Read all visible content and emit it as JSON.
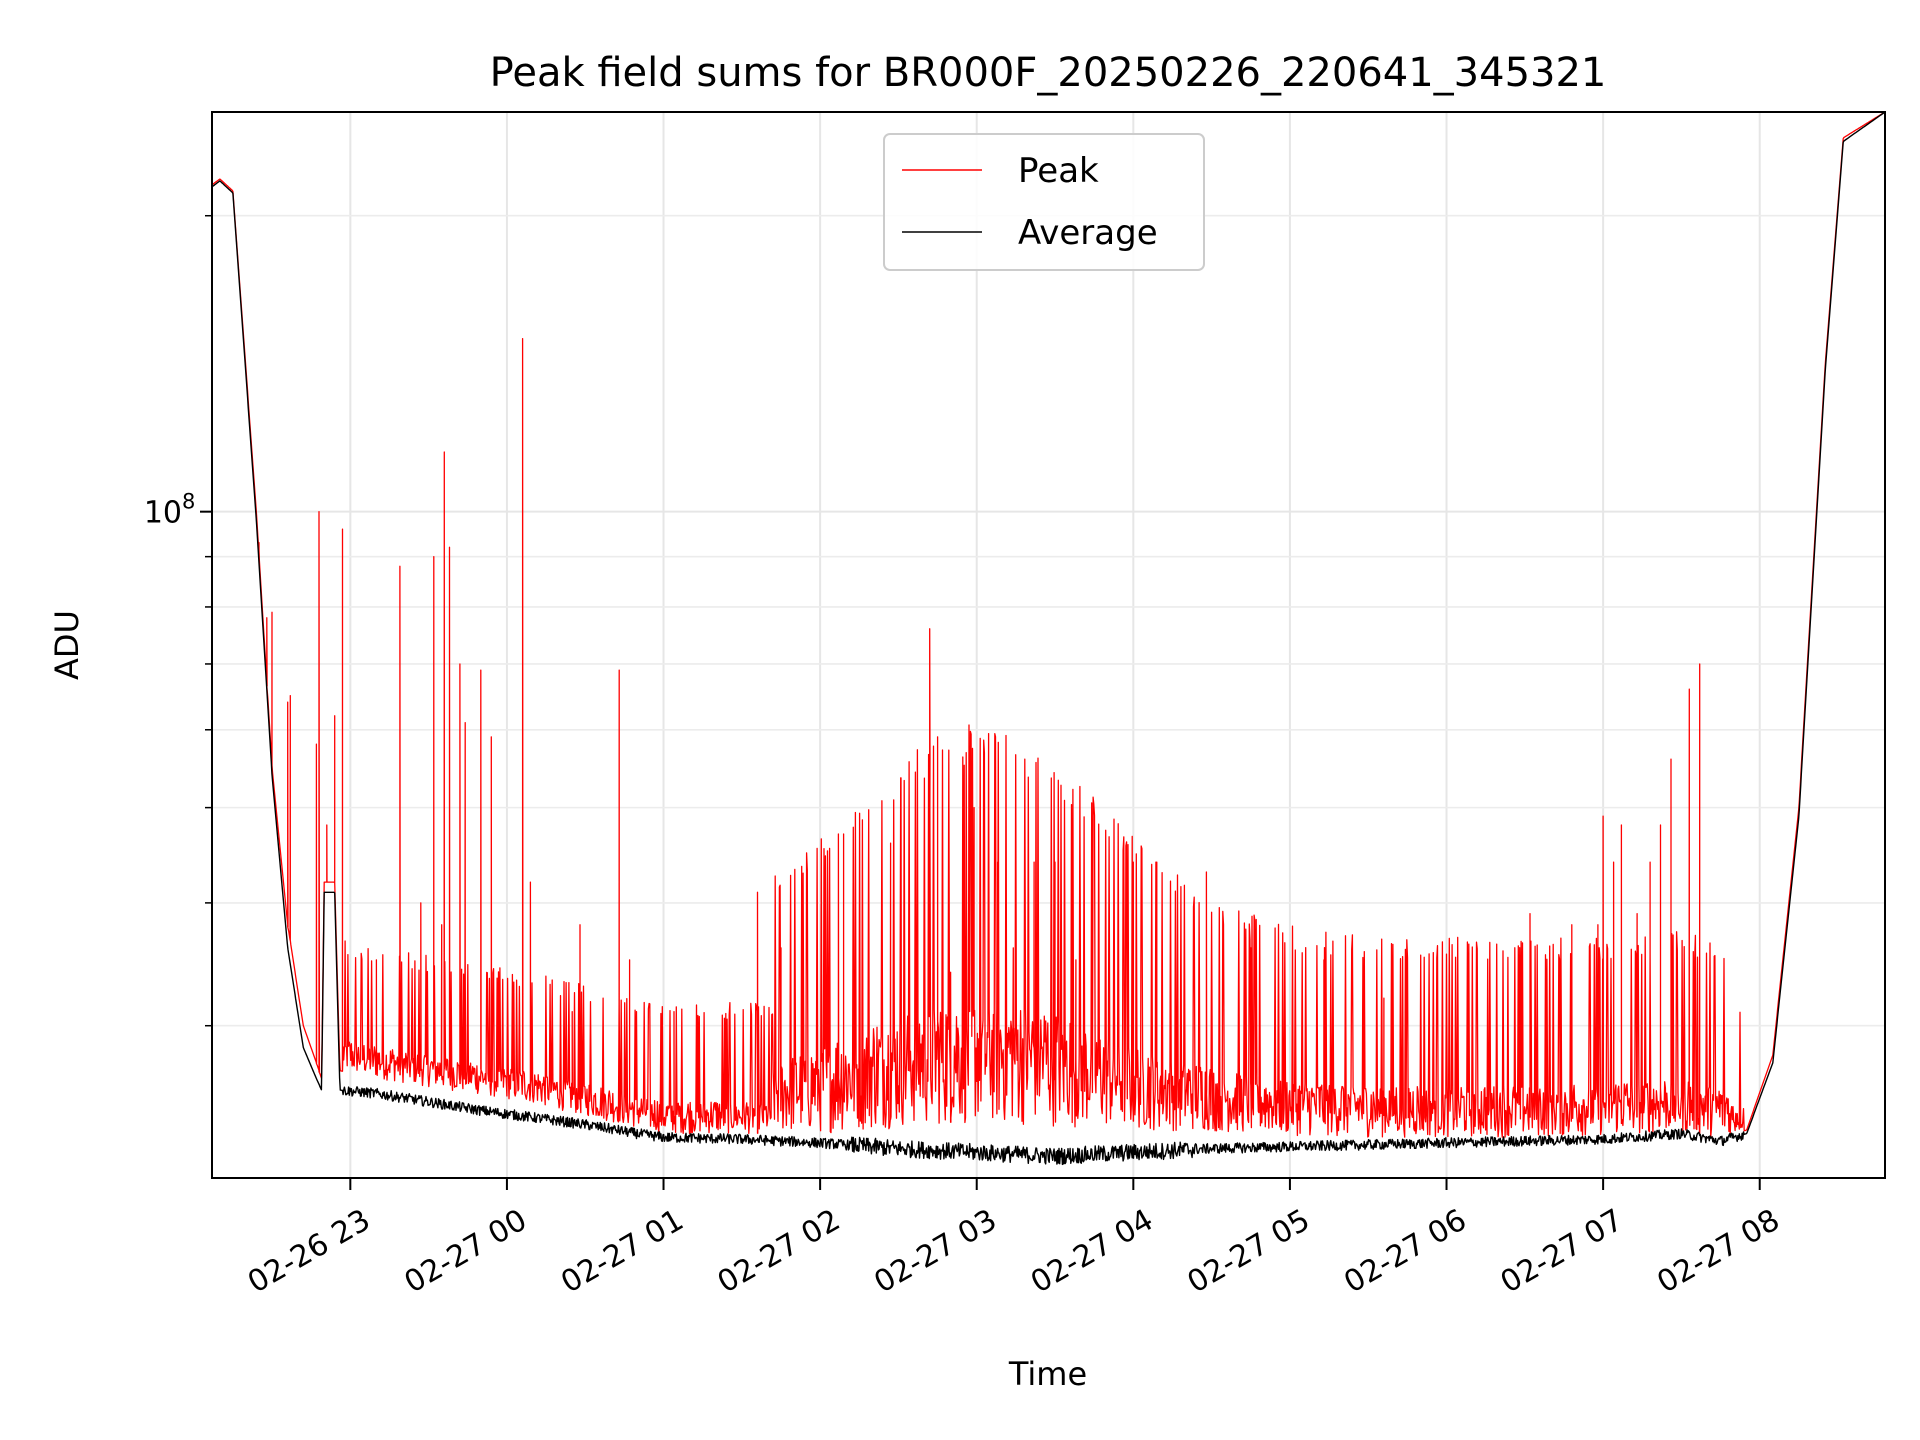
{
  "chart_data": {
    "type": "line",
    "title": "Peak field sums for BR000F_20250226_220641_345321",
    "xlabel": "Time",
    "ylabel": "ADU",
    "yscale": "log",
    "ylim": [
      21000000,
      255000000
    ],
    "xlim": [
      "2025-02-26 22:07",
      "2025-02-27 08:48"
    ],
    "x_tick_labels": [
      "02-26 23",
      "02-27 00",
      "02-27 01",
      "02-27 02",
      "02-27 03",
      "02-27 04",
      "02-27 05",
      "02-27 06",
      "02-27 07",
      "02-27 08"
    ],
    "x_tick_times": [
      "2025-02-26 23:00",
      "2025-02-27 00:00",
      "2025-02-27 01:00",
      "2025-02-27 02:00",
      "2025-02-27 03:00",
      "2025-02-27 04:00",
      "2025-02-27 05:00",
      "2025-02-27 06:00",
      "2025-02-27 07:00",
      "2025-02-27 08:00"
    ],
    "y_tick_label_base": "10",
    "y_tick_label_exp": "8",
    "y_tick_value": 100000000,
    "y_minor_ticks": [
      30000000,
      40000000,
      50000000,
      60000000,
      70000000,
      80000000,
      90000000,
      200000000
    ],
    "grid": true,
    "legend_position": "top-center",
    "series": [
      {
        "name": "Peak",
        "color": "#ff0000",
        "baseline_points": [
          [
            "2025-02-26 22:07",
            215000000
          ],
          [
            "2025-02-26 22:10",
            218000000
          ],
          [
            "2025-02-26 22:15",
            212000000
          ],
          [
            "2025-02-26 22:24",
            100000000
          ],
          [
            "2025-02-26 22:30",
            55000000
          ],
          [
            "2025-02-26 22:36",
            38000000
          ],
          [
            "2025-02-26 22:42",
            30000000
          ],
          [
            "2025-02-26 22:47",
            27500000
          ],
          [
            "2025-02-26 22:49",
            26500000
          ],
          [
            "2025-02-26 22:50",
            42000000
          ],
          [
            "2025-02-26 22:54",
            42000000
          ],
          [
            "2025-02-26 22:56",
            27000000
          ],
          [
            "2025-02-26 23:10",
            26500000
          ],
          [
            "2025-02-26 23:30",
            26000000
          ],
          [
            "2025-02-26 23:50",
            25500000
          ],
          [
            "2025-02-27 00:10",
            25000000
          ],
          [
            "2025-02-27 00:30",
            24300000
          ],
          [
            "2025-02-27 00:50",
            23600000
          ],
          [
            "2025-02-27 01:00",
            23300000
          ],
          [
            "2025-02-27 01:30",
            23300000
          ],
          [
            "2025-02-27 02:00",
            23300000
          ],
          [
            "2025-02-27 02:30",
            23600000
          ],
          [
            "2025-02-27 03:00",
            23800000
          ],
          [
            "2025-02-27 03:30",
            23700000
          ],
          [
            "2025-02-27 04:00",
            23500000
          ],
          [
            "2025-02-27 04:30",
            23400000
          ],
          [
            "2025-02-27 05:00",
            23200000
          ],
          [
            "2025-02-27 05:30",
            23100000
          ],
          [
            "2025-02-27 06:00",
            23100000
          ],
          [
            "2025-02-27 06:30",
            23100000
          ],
          [
            "2025-02-27 07:00",
            23200000
          ],
          [
            "2025-02-27 07:30",
            23400000
          ],
          [
            "2025-02-27 07:45",
            23000000
          ],
          [
            "2025-02-27 07:55",
            23500000
          ],
          [
            "2025-02-27 08:05",
            28000000
          ],
          [
            "2025-02-27 08:15",
            50000000
          ],
          [
            "2025-02-27 08:25",
            140000000
          ],
          [
            "2025-02-27 08:32",
            240000000
          ],
          [
            "2025-02-27 08:48",
            255000000
          ]
        ],
        "spikes": [
          [
            "2025-02-26 22:25",
            93000000
          ],
          [
            "2025-02-26 22:28",
            78000000
          ],
          [
            "2025-02-26 22:30",
            79000000
          ],
          [
            "2025-02-26 22:36",
            64000000
          ],
          [
            "2025-02-26 22:37",
            65000000
          ],
          [
            "2025-02-26 22:47",
            58000000
          ],
          [
            "2025-02-26 22:48",
            100000000
          ],
          [
            "2025-02-26 22:51",
            48000000
          ],
          [
            "2025-02-26 22:54",
            62000000
          ],
          [
            "2025-02-26 22:57",
            96000000
          ],
          [
            "2025-02-26 23:10",
            35000000
          ],
          [
            "2025-02-26 23:19",
            88000000
          ],
          [
            "2025-02-26 23:27",
            40000000
          ],
          [
            "2025-02-26 23:32",
            90000000
          ],
          [
            "2025-02-26 23:35",
            38000000
          ],
          [
            "2025-02-26 23:36",
            115000000
          ],
          [
            "2025-02-26 23:38",
            92000000
          ],
          [
            "2025-02-26 23:42",
            70000000
          ],
          [
            "2025-02-26 23:44",
            61000000
          ],
          [
            "2025-02-26 23:50",
            69000000
          ],
          [
            "2025-02-26 23:54",
            59000000
          ],
          [
            "2025-02-27 00:06",
            150000000
          ],
          [
            "2025-02-27 00:09",
            42000000
          ],
          [
            "2025-02-27 00:25",
            31000000
          ],
          [
            "2025-02-27 00:28",
            38000000
          ],
          [
            "2025-02-27 00:43",
            69000000
          ],
          [
            "2025-02-27 00:47",
            35000000
          ],
          [
            "2025-02-27 01:04",
            31000000
          ],
          [
            "2025-02-27 01:36",
            41000000
          ],
          [
            "2025-02-27 01:45",
            36000000
          ],
          [
            "2025-02-27 02:07",
            47000000
          ],
          [
            "2025-02-27 02:09",
            47000000
          ],
          [
            "2025-02-27 02:27",
            46000000
          ],
          [
            "2025-02-27 02:31",
            48000000
          ],
          [
            "2025-02-27 02:42",
            76000000
          ],
          [
            "2025-02-27 02:45",
            59000000
          ],
          [
            "2025-02-27 02:50",
            34000000
          ],
          [
            "2025-02-27 02:59",
            50000000
          ],
          [
            "2025-02-27 03:08",
            44000000
          ],
          [
            "2025-02-27 03:14",
            36000000
          ],
          [
            "2025-02-27 03:22",
            44000000
          ],
          [
            "2025-02-27 03:30",
            44000000
          ],
          [
            "2025-02-27 03:38",
            35000000
          ],
          [
            "2025-02-27 04:00",
            44000000
          ],
          [
            "2025-02-27 04:09",
            44000000
          ],
          [
            "2025-02-27 04:28",
            43000000
          ],
          [
            "2025-02-27 04:45",
            36000000
          ],
          [
            "2025-02-27 05:13",
            35000000
          ],
          [
            "2025-02-27 05:36",
            32000000
          ],
          [
            "2025-02-27 06:00",
            31000000
          ],
          [
            "2025-02-27 06:32",
            39000000
          ],
          [
            "2025-02-27 06:48",
            38000000
          ],
          [
            "2025-02-27 06:58",
            38000000
          ],
          [
            "2025-02-27 07:00",
            49000000
          ],
          [
            "2025-02-27 07:04",
            44000000
          ],
          [
            "2025-02-27 07:07",
            48000000
          ],
          [
            "2025-02-27 07:13",
            39000000
          ],
          [
            "2025-02-27 07:18",
            44000000
          ],
          [
            "2025-02-27 07:22",
            48000000
          ],
          [
            "2025-02-27 07:26",
            56000000
          ],
          [
            "2025-02-27 07:33",
            66000000
          ],
          [
            "2025-02-27 07:37",
            70000000
          ]
        ]
      },
      {
        "name": "Average",
        "color": "#000000",
        "baseline_points": [
          [
            "2025-02-26 22:07",
            214000000
          ],
          [
            "2025-02-26 22:10",
            217000000
          ],
          [
            "2025-02-26 22:15",
            211000000
          ],
          [
            "2025-02-26 22:24",
            98000000
          ],
          [
            "2025-02-26 22:30",
            54000000
          ],
          [
            "2025-02-26 22:36",
            36000000
          ],
          [
            "2025-02-26 22:42",
            28500000
          ],
          [
            "2025-02-26 22:47",
            26500000
          ],
          [
            "2025-02-26 22:49",
            25800000
          ],
          [
            "2025-02-26 22:50",
            41000000
          ],
          [
            "2025-02-26 22:54",
            41000000
          ],
          [
            "2025-02-26 22:56",
            25800000
          ],
          [
            "2025-02-26 23:10",
            25600000
          ],
          [
            "2025-02-26 23:30",
            25100000
          ],
          [
            "2025-02-26 23:50",
            24600000
          ],
          [
            "2025-02-27 00:10",
            24200000
          ],
          [
            "2025-02-27 00:30",
            23800000
          ],
          [
            "2025-02-27 00:50",
            23300000
          ],
          [
            "2025-02-27 01:00",
            23100000
          ],
          [
            "2025-02-27 01:30",
            23000000
          ],
          [
            "2025-02-27 02:00",
            22800000
          ],
          [
            "2025-02-27 02:30",
            22500000
          ],
          [
            "2025-02-27 03:00",
            22300000
          ],
          [
            "2025-02-27 03:30",
            22100000
          ],
          [
            "2025-02-27 04:00",
            22300000
          ],
          [
            "2025-02-27 04:30",
            22500000
          ],
          [
            "2025-02-27 05:00",
            22600000
          ],
          [
            "2025-02-27 05:30",
            22700000
          ],
          [
            "2025-02-27 06:00",
            22800000
          ],
          [
            "2025-02-27 06:30",
            22900000
          ],
          [
            "2025-02-27 07:00",
            23000000
          ],
          [
            "2025-02-27 07:30",
            23300000
          ],
          [
            "2025-02-27 07:45",
            22900000
          ],
          [
            "2025-02-27 07:55",
            23300000
          ],
          [
            "2025-02-27 08:05",
            27500000
          ],
          [
            "2025-02-27 08:15",
            49000000
          ],
          [
            "2025-02-27 08:25",
            138000000
          ],
          [
            "2025-02-27 08:32",
            238000000
          ],
          [
            "2025-02-27 08:48",
            255000000
          ]
        ]
      }
    ]
  }
}
